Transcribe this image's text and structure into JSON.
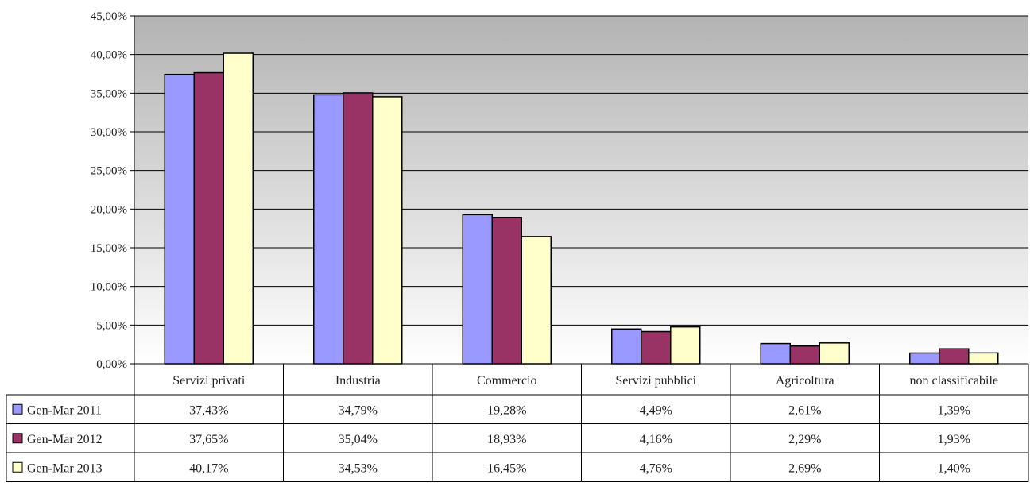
{
  "chart_data": {
    "type": "bar",
    "categories": [
      "Servizi privati",
      "Industria",
      "Commercio",
      "Servizi pubblici",
      "Agricoltura",
      "non classificabile"
    ],
    "series": [
      {
        "name": "Gen-Mar 2011",
        "values": [
          37.43,
          34.79,
          19.28,
          4.49,
          2.61,
          1.39
        ],
        "labels": [
          "37,43%",
          "34,79%",
          "19,28%",
          "4,49%",
          "2,61%",
          "1,39%"
        ],
        "color": "#9999ff"
      },
      {
        "name": "Gen-Mar 2012",
        "values": [
          37.65,
          35.04,
          18.93,
          4.16,
          2.29,
          1.93
        ],
        "labels": [
          "37,65%",
          "35,04%",
          "18,93%",
          "4,16%",
          "2,29%",
          "1,93%"
        ],
        "color": "#993366"
      },
      {
        "name": "Gen-Mar 2013",
        "values": [
          40.17,
          34.53,
          16.45,
          4.76,
          2.69,
          1.4
        ],
        "labels": [
          "40,17%",
          "34,53%",
          "16,45%",
          "4,76%",
          "2,69%",
          "1,40%"
        ],
        "color": "#ffffcc"
      }
    ],
    "ylim": [
      0,
      45
    ],
    "yticks": [
      0,
      5,
      10,
      15,
      20,
      25,
      30,
      35,
      40,
      45
    ],
    "ytick_labels": [
      "0,00%",
      "5,00%",
      "10,00%",
      "15,00%",
      "20,00%",
      "25,00%",
      "30,00%",
      "35,00%",
      "40,00%",
      "45,00%"
    ],
    "grid": true,
    "legend": "data-table",
    "background_gradient": [
      "#b3b3b3",
      "#ffffff"
    ]
  }
}
